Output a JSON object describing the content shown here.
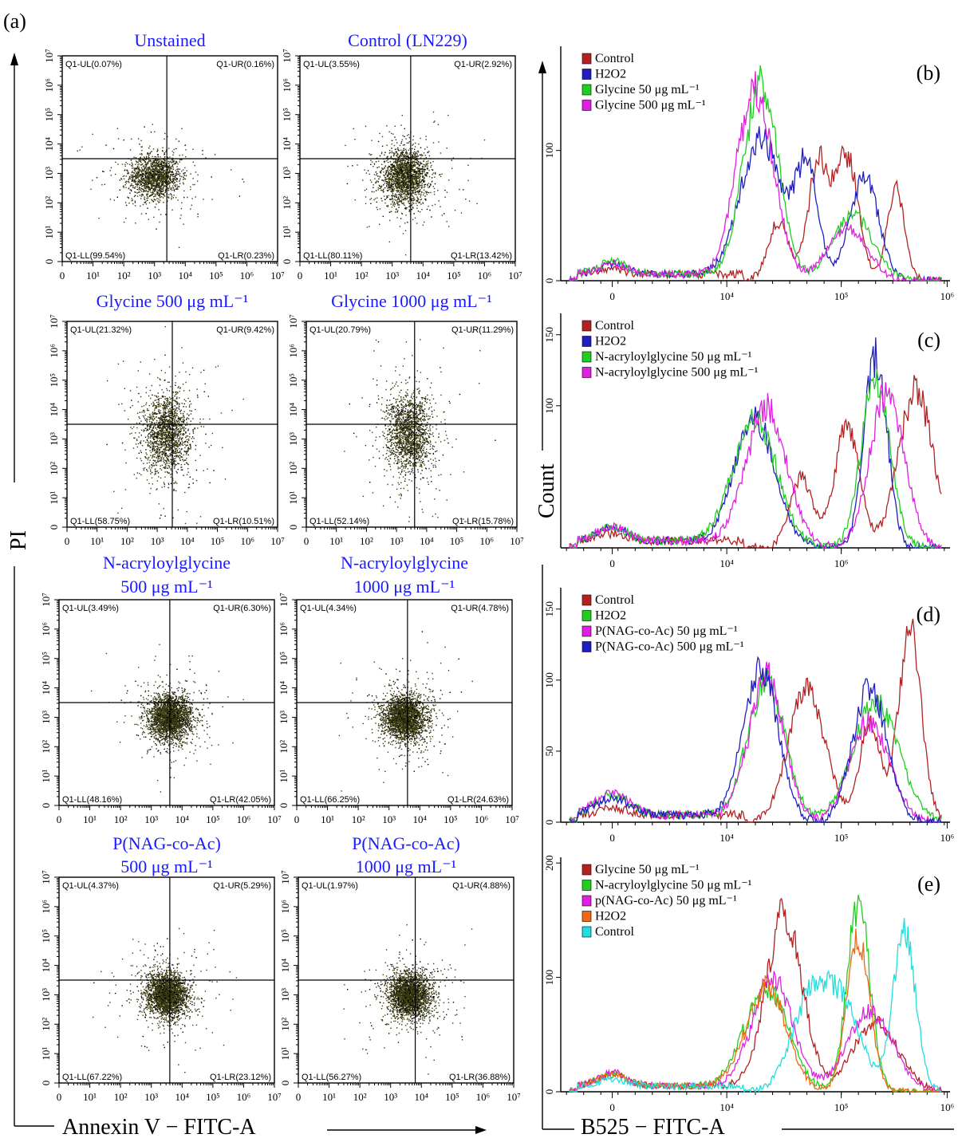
{
  "figure": {
    "panel_a_label": "(a)",
    "a_ylabel": "PI",
    "a_xlabel": "Annexin V − FITC-A",
    "hist_ylabel": "Count",
    "hist_xlabel": "B525 − FITC-A",
    "scatter_tick_labels": [
      "0",
      "10¹",
      "10²",
      "10³",
      "10⁴",
      "10⁵",
      "10⁶",
      "10⁷"
    ]
  },
  "chart_data": [
    {
      "type": "scatter",
      "id": "s1",
      "title": "Unstained",
      "subtitle": "",
      "quadrants": {
        "UL": "Q1-UL(0.07%)",
        "UR": "Q1-UR(0.16%)",
        "LL": "Q1-LL(99.54%)",
        "LR": "Q1-LR(0.23%)"
      },
      "xlabel": "",
      "ylabel": "",
      "x_scale": "log",
      "xlim": [
        0,
        7
      ],
      "ylim": [
        0,
        7
      ],
      "gate": {
        "x": 3.4,
        "y": 3.5
      },
      "cluster": {
        "cx": 3.0,
        "cy": 2.9,
        "sx": 0.55,
        "sy": 0.5,
        "n": 1600
      }
    },
    {
      "type": "scatter",
      "id": "s2",
      "title": "Control (LN229)",
      "subtitle": "",
      "quadrants": {
        "UL": "Q1-UL(3.55%)",
        "UR": "Q1-UR(2.92%)",
        "LL": "Q1-LL(80.11%)",
        "LR": "Q1-LR(13.42%)"
      },
      "xlabel": "",
      "ylabel": "",
      "x_scale": "log",
      "xlim": [
        0,
        7
      ],
      "ylim": [
        0,
        7
      ],
      "gate": {
        "x": 3.6,
        "y": 3.5
      },
      "cluster": {
        "cx": 3.4,
        "cy": 2.9,
        "sx": 0.5,
        "sy": 0.6,
        "n": 2000
      }
    },
    {
      "type": "scatter",
      "id": "s3",
      "title": "Glycine 500 μg mL⁻¹",
      "subtitle": "",
      "quadrants": {
        "UL": "Q1-UL(21.32%)",
        "UR": "Q1-UR(9.42%)",
        "LL": "Q1-LL(58.75%)",
        "LR": "Q1-LR(10.51%)"
      },
      "xlabel": "",
      "ylabel": "",
      "x_scale": "log",
      "xlim": [
        0,
        7
      ],
      "ylim": [
        0,
        7
      ],
      "gate": {
        "x": 3.5,
        "y": 3.5
      },
      "cluster": {
        "cx": 3.3,
        "cy": 3.2,
        "sx": 0.5,
        "sy": 0.9,
        "n": 1700
      }
    },
    {
      "type": "scatter",
      "id": "s4",
      "title": "Glycine 1000 μg mL⁻¹",
      "subtitle": "",
      "quadrants": {
        "UL": "Q1-UL(20.79%)",
        "UR": "Q1-UR(11.29%)",
        "LL": "Q1-LL(52.14%)",
        "LR": "Q1-LR(15.78%)"
      },
      "xlabel": "",
      "ylabel": "",
      "x_scale": "log",
      "xlim": [
        0,
        7
      ],
      "ylim": [
        0,
        7
      ],
      "gate": {
        "x": 3.6,
        "y": 3.5
      },
      "cluster": {
        "cx": 3.4,
        "cy": 3.2,
        "sx": 0.5,
        "sy": 0.9,
        "n": 1700
      }
    },
    {
      "type": "scatter",
      "id": "s5",
      "title": "N-acryloylglycine",
      "subtitle": "500 μg mL⁻¹",
      "quadrants": {
        "UL": "Q1-UL(3.49%)",
        "UR": "Q1-UR(6.30%)",
        "LL": "Q1-LL(48.16%)",
        "LR": "Q1-LR(42.05%)"
      },
      "xlabel": "",
      "ylabel": "",
      "x_scale": "log",
      "xlim": [
        0,
        7
      ],
      "ylim": [
        0,
        7
      ],
      "gate": {
        "x": 3.6,
        "y": 3.5
      },
      "cluster": {
        "cx": 3.6,
        "cy": 3.0,
        "sx": 0.45,
        "sy": 0.5,
        "n": 2600
      }
    },
    {
      "type": "scatter",
      "id": "s6",
      "title": "N-acryloylglycine",
      "subtitle": "1000 μg mL⁻¹",
      "quadrants": {
        "UL": "Q1-UL(4.34%)",
        "UR": "Q1-UR(4.78%)",
        "LL": "Q1-LL(66.25%)",
        "LR": "Q1-LR(24.63%)"
      },
      "xlabel": "",
      "ylabel": "",
      "x_scale": "log",
      "xlim": [
        0,
        7
      ],
      "ylim": [
        0,
        7
      ],
      "gate": {
        "x": 3.6,
        "y": 3.5
      },
      "cluster": {
        "cx": 3.5,
        "cy": 3.0,
        "sx": 0.45,
        "sy": 0.5,
        "n": 2600
      }
    },
    {
      "type": "scatter",
      "id": "s7",
      "title": "P(NAG-co-Ac)",
      "subtitle": "500 μg mL⁻¹",
      "quadrants": {
        "UL": "Q1-UL(4.37%)",
        "UR": "Q1-UR(5.29%)",
        "LL": "Q1-LL(67.22%)",
        "LR": "Q1-LR(23.12%)"
      },
      "xlabel": "",
      "ylabel": "",
      "x_scale": "log",
      "xlim": [
        0,
        7
      ],
      "ylim": [
        0,
        7
      ],
      "gate": {
        "x": 3.6,
        "y": 3.5
      },
      "cluster": {
        "cx": 3.5,
        "cy": 3.0,
        "sx": 0.45,
        "sy": 0.5,
        "n": 2600
      }
    },
    {
      "type": "scatter",
      "id": "s8",
      "title": "P(NAG-co-Ac)",
      "subtitle": "1000 μg mL⁻¹",
      "quadrants": {
        "UL": "Q1-UL(1.97%)",
        "UR": "Q1-UR(4.88%)",
        "LL": "Q1-LL(56.27%)",
        "LR": "Q1-LR(36.88%)"
      },
      "xlabel": "",
      "ylabel": "",
      "x_scale": "log",
      "xlim": [
        0,
        7
      ],
      "ylim": [
        0,
        7
      ],
      "gate": {
        "x": 3.8,
        "y": 3.5
      },
      "cluster": {
        "cx": 3.6,
        "cy": 3.0,
        "sx": 0.45,
        "sy": 0.5,
        "n": 2600
      }
    },
    {
      "type": "line",
      "id": "h1",
      "title": "(b)",
      "xlabel": "",
      "ylabel": "",
      "x_ticks": [
        "0",
        "10⁴",
        "10⁵",
        "10⁶"
      ],
      "y_ticks": [
        0,
        100
      ],
      "ylim": [
        0,
        180
      ],
      "series": [
        {
          "name": "Control",
          "color": "#b22222",
          "peaks": [
            [
              0.3,
              3,
              0.25
            ],
            [
              3.2,
              45,
              0.18
            ],
            [
              3.9,
              90,
              0.18
            ],
            [
              4.4,
              95,
              0.2
            ],
            [
              5.25,
              70,
              0.15
            ]
          ]
        },
        {
          "name": "H2O2",
          "color": "#1f1fbf",
          "peaks": [
            [
              0.3,
              8,
              0.25
            ],
            [
              2.9,
              110,
              0.35
            ],
            [
              4.7,
              80,
              0.25
            ],
            [
              3.7,
              85,
              0.2
            ]
          ]
        },
        {
          "name": "Glycine 50 μg mL⁻¹",
          "color": "#22cc22",
          "peaks": [
            [
              0.3,
              10,
              0.25
            ],
            [
              2.9,
              150,
              0.3
            ],
            [
              4.5,
              50,
              0.35
            ]
          ]
        },
        {
          "name": "Glycine 500 μg mL⁻¹",
          "color": "#e020e0",
          "peaks": [
            [
              0.3,
              8,
              0.25
            ],
            [
              2.8,
              145,
              0.32
            ],
            [
              4.4,
              40,
              0.35
            ]
          ]
        }
      ]
    },
    {
      "type": "line",
      "id": "h2",
      "title": "(c)",
      "xlabel": "",
      "ylabel": "",
      "x_ticks": [
        "0",
        "10⁴",
        "10⁶"
      ],
      "y_ticks": [
        100,
        150
      ],
      "ylim": [
        0,
        165
      ],
      "series": [
        {
          "name": "Control",
          "color": "#b22222",
          "peaks": [
            [
              0.3,
              5,
              0.25
            ],
            [
              3.6,
              50,
              0.2
            ],
            [
              4.4,
              85,
              0.22
            ],
            [
              5.6,
              110,
              0.3
            ]
          ]
        },
        {
          "name": "H2O2",
          "color": "#1f1fbf",
          "peaks": [
            [
              0.3,
              10,
              0.25
            ],
            [
              2.8,
              90,
              0.35
            ],
            [
              4.9,
              135,
              0.2
            ]
          ]
        },
        {
          "name": "N-acryloylglycine 50 μg mL⁻¹",
          "color": "#22cc22",
          "peaks": [
            [
              0.3,
              10,
              0.25
            ],
            [
              2.8,
              90,
              0.38
            ],
            [
              4.9,
              120,
              0.25
            ]
          ]
        },
        {
          "name": "N-acryloylglycine 500 μg mL⁻¹",
          "color": "#e020e0",
          "peaks": [
            [
              0.3,
              10,
              0.25
            ],
            [
              3.0,
              100,
              0.35
            ],
            [
              5.1,
              110,
              0.3
            ]
          ]
        }
      ]
    },
    {
      "type": "line",
      "id": "h3",
      "title": "(d)",
      "xlabel": "",
      "ylabel": "",
      "x_ticks": [
        "0",
        "10⁴",
        "10⁵",
        "10⁶"
      ],
      "y_ticks": [
        0,
        50,
        100,
        150
      ],
      "ylim": [
        0,
        165
      ],
      "series": [
        {
          "name": "Control",
          "color": "#b22222",
          "peaks": [
            [
              0.3,
              5,
              0.25
            ],
            [
              3.7,
              95,
              0.32
            ],
            [
              4.8,
              70,
              0.18
            ],
            [
              5.5,
              135,
              0.2
            ]
          ]
        },
        {
          "name": "H2O2",
          "color": "#22cc22",
          "peaks": [
            [
              0.3,
              14,
              0.3
            ],
            [
              3.0,
              100,
              0.32
            ],
            [
              4.9,
              85,
              0.4
            ]
          ]
        },
        {
          "name": "P(NAG-co-Ac) 50 μg mL⁻¹",
          "color": "#e020e0",
          "peaks": [
            [
              0.3,
              15,
              0.3
            ],
            [
              3.0,
              105,
              0.3
            ],
            [
              4.8,
              70,
              0.35
            ]
          ]
        },
        {
          "name": "P(NAG-co-Ac) 500 μg mL⁻¹",
          "color": "#1f1fbf",
          "peaks": [
            [
              0.3,
              12,
              0.3
            ],
            [
              2.9,
              108,
              0.3
            ],
            [
              4.8,
              95,
              0.3
            ]
          ]
        }
      ]
    },
    {
      "type": "line",
      "id": "h4",
      "title": "(e)",
      "xlabel": "",
      "ylabel": "",
      "x_ticks": [
        "0",
        "10⁴",
        "10⁵",
        "10⁶"
      ],
      "y_ticks": [
        0,
        100,
        200
      ],
      "ylim": [
        0,
        205
      ],
      "series": [
        {
          "name": "Glycine 50 μg mL⁻¹",
          "color": "#b22222",
          "peaks": [
            [
              0.3,
              10,
              0.25
            ],
            [
              3.3,
              155,
              0.32
            ],
            [
              4.9,
              60,
              0.4
            ]
          ]
        },
        {
          "name": "N-acryloylglycine 50 μg mL⁻¹",
          "color": "#22cc22",
          "peaks": [
            [
              0.3,
              10,
              0.25
            ],
            [
              3.0,
              90,
              0.38
            ],
            [
              4.6,
              165,
              0.2
            ]
          ]
        },
        {
          "name": "p(NAG-co-Ac) 50 μg mL⁻¹",
          "color": "#e020e0",
          "peaks": [
            [
              0.3,
              12,
              0.25
            ],
            [
              3.1,
              100,
              0.35
            ],
            [
              4.8,
              70,
              0.4
            ]
          ]
        },
        {
          "name": "H2O2",
          "color": "#ee6a10",
          "peaks": [
            [
              0.3,
              10,
              0.25
            ],
            [
              3.0,
              92,
              0.35
            ],
            [
              4.6,
              135,
              0.2
            ]
          ]
        },
        {
          "name": "Control",
          "color": "#22dddd",
          "peaks": [
            [
              0.3,
              6,
              0.25
            ],
            [
              3.8,
              85,
              0.35
            ],
            [
              4.4,
              60,
              0.3
            ],
            [
              5.4,
              140,
              0.2
            ]
          ]
        }
      ]
    }
  ]
}
